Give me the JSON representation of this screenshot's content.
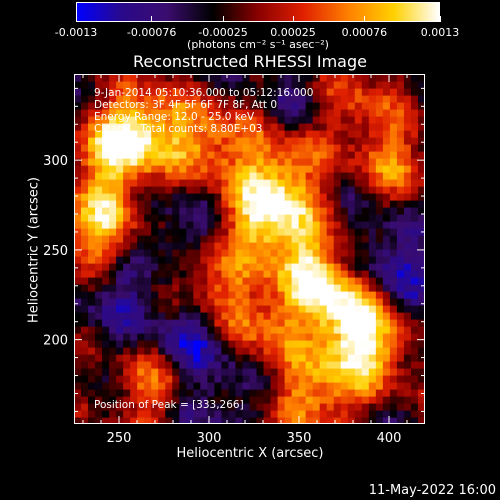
{
  "colorbar": {
    "ticks": [
      "-0.0013",
      "-0.00076",
      "-0.00025",
      "0.00025",
      "0.00076",
      "0.0013"
    ],
    "tick_values": [
      -0.0013,
      -0.00076,
      -0.00025,
      0.00025,
      0.00076,
      0.0013
    ],
    "range": [
      -0.0013,
      0.0013
    ],
    "unit_label": "(photons cm⁻² s⁻¹ asec⁻²)"
  },
  "timestamp": "11-May-2022 16:00",
  "chart_data": {
    "type": "heatmap",
    "title": "Reconstructed RHESSI Image",
    "xlabel": "Heliocentric X (arcsec)",
    "ylabel": "Heliocentric Y (arcsec)",
    "xlim": [
      225,
      420
    ],
    "ylim": [
      153,
      348
    ],
    "xticks": [
      250,
      300,
      350,
      400
    ],
    "yticks": [
      200,
      250,
      300
    ],
    "annotations": [
      "9-Jan-2014 05:10:36.000 to 05:12:16.000",
      "Detectors: 3F 4F 5F 6F 7F 8F, Att 0",
      "Energy Range: 12.0 - 25.0 keV",
      "Clean     Total counts: 8.80E+03"
    ],
    "peak_label": "Position of Peak = [333,266]",
    "peak": [
      333,
      266
    ],
    "colormap": [
      "#0000ff",
      "#2a0a8a",
      "#3a0c6e",
      "#000000",
      "#8a0000",
      "#e02000",
      "#ff8000",
      "#ffd000",
      "#ffffff"
    ],
    "bright_regions": [
      {
        "x": 333,
        "y": 266,
        "intensity": 1.0
      },
      {
        "x": 240,
        "y": 262,
        "intensity": 0.85
      },
      {
        "x": 262,
        "y": 318,
        "intensity": 0.9
      },
      {
        "x": 300,
        "y": 310,
        "intensity": 0.7
      },
      {
        "x": 340,
        "y": 295,
        "intensity": 0.75
      },
      {
        "x": 360,
        "y": 240,
        "intensity": 0.8
      },
      {
        "x": 375,
        "y": 215,
        "intensity": 0.85
      },
      {
        "x": 390,
        "y": 195,
        "intensity": 0.8
      },
      {
        "x": 330,
        "y": 210,
        "intensity": 0.6
      },
      {
        "x": 300,
        "y": 230,
        "intensity": 0.55
      },
      {
        "x": 270,
        "y": 175,
        "intensity": 0.6
      },
      {
        "x": 360,
        "y": 170,
        "intensity": 0.75
      },
      {
        "x": 405,
        "y": 300,
        "intensity": 0.55
      },
      {
        "x": 245,
        "y": 300,
        "intensity": 0.7
      },
      {
        "x": 380,
        "y": 330,
        "intensity": 0.5
      }
    ],
    "dim_regions": [
      {
        "x": 290,
        "y": 200,
        "intensity": -0.6
      },
      {
        "x": 250,
        "y": 225,
        "intensity": -0.4
      },
      {
        "x": 300,
        "y": 165,
        "intensity": -0.35
      },
      {
        "x": 395,
        "y": 250,
        "intensity": -0.4
      },
      {
        "x": 280,
        "y": 260,
        "intensity": -0.35
      },
      {
        "x": 350,
        "y": 330,
        "intensity": -0.25
      },
      {
        "x": 410,
        "y": 230,
        "intensity": -0.3
      }
    ]
  }
}
